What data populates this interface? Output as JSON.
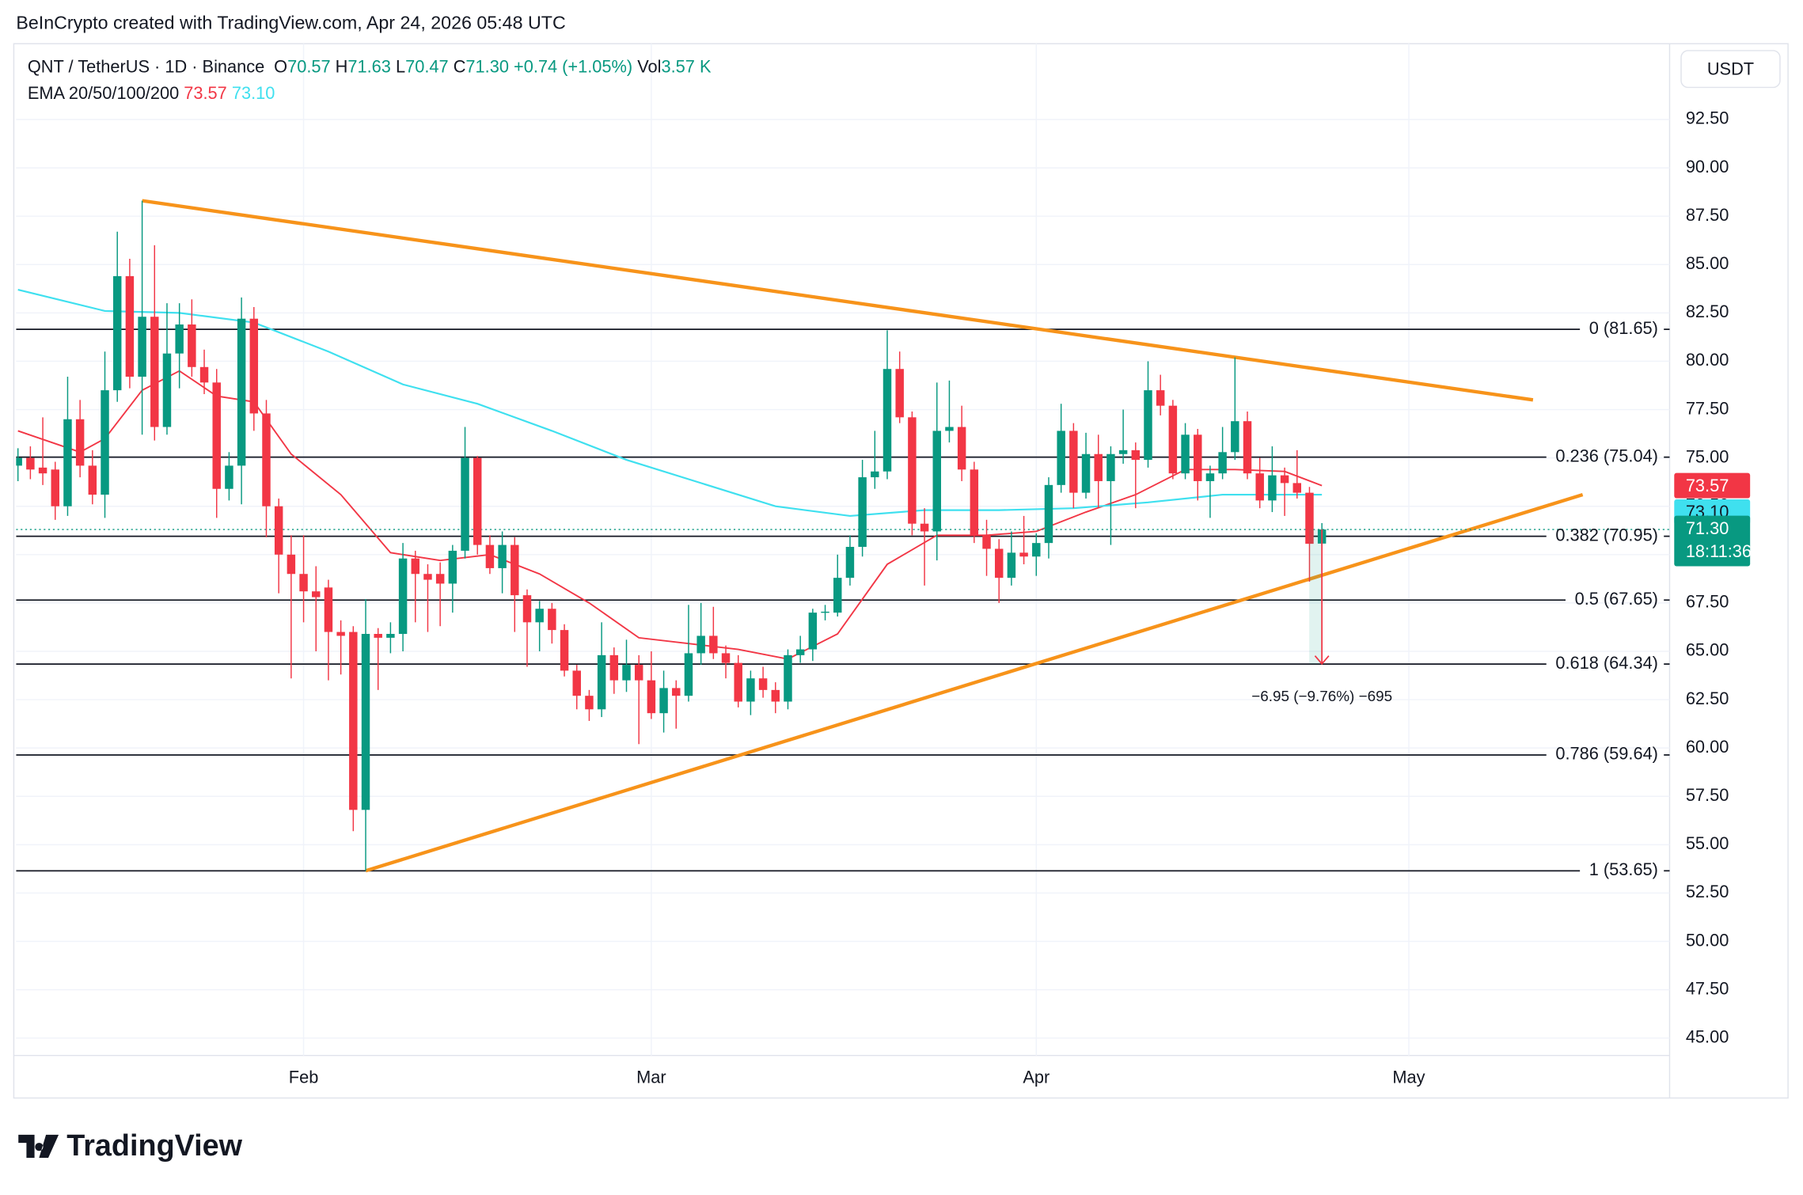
{
  "attribution": "BeInCrypto created with TradingView.com, Apr 24, 2026 05:48 UTC",
  "brand": "TradingView",
  "currency_button": "USDT",
  "chart_data": {
    "type": "candlestick",
    "symbol": "QNT / TetherUS · 1D · Binance",
    "legend": [
      {
        "key": "O",
        "value": "70.57"
      },
      {
        "key": "H",
        "value": "71.63"
      },
      {
        "key": "L",
        "value": "70.47"
      },
      {
        "key": "C",
        "value": "71.30"
      }
    ],
    "change": "+0.74 (+1.05%)",
    "volume": {
      "key": "Vol",
      "value": "3.57 K"
    },
    "x": [
      9,
      10,
      11,
      12,
      13,
      14,
      15,
      16,
      17,
      18,
      19,
      20,
      21,
      22,
      23,
      24,
      25,
      26,
      27,
      28,
      29,
      30,
      31,
      32,
      33,
      34,
      35,
      36,
      37,
      38,
      39,
      40,
      41,
      42,
      43,
      44,
      45,
      46,
      47,
      48,
      49,
      50,
      51,
      52,
      53,
      54,
      55,
      56,
      57,
      58,
      59,
      60,
      61,
      62,
      63,
      64,
      65,
      66,
      67,
      68,
      69,
      70,
      71,
      72,
      73,
      74,
      75,
      76,
      77,
      78,
      79,
      80,
      81,
      82,
      83,
      84,
      85,
      86,
      87,
      88,
      89,
      90,
      91,
      92,
      93,
      94,
      95,
      96,
      97,
      98,
      99,
      100,
      101,
      102,
      103,
      104,
      105,
      106,
      107,
      108,
      109,
      110,
      111,
      112,
      113,
      114
    ],
    "open": [
      74.6,
      75.0,
      74.5,
      74.4,
      72.5,
      77.0,
      74.6,
      73.1,
      78.5,
      84.4,
      79.2,
      82.3,
      76.6,
      80.4,
      81.9,
      79.7,
      78.9,
      73.4,
      74.6,
      82.2,
      77.3,
      72.5,
      70.0,
      69.0,
      68.1,
      68.3,
      66.0,
      66.0,
      56.8,
      65.9,
      65.7,
      65.9,
      69.8,
      69.0,
      69.0,
      68.5,
      70.2,
      75.0,
      70.5,
      69.3,
      70.5,
      67.9,
      66.5,
      67.2,
      66.1,
      64.0,
      62.7,
      62.0,
      64.8,
      63.5,
      64.3,
      63.5,
      61.8,
      63.1,
      62.7,
      64.9,
      65.8,
      64.9,
      64.4,
      62.4,
      63.6,
      63.0,
      62.4,
      64.8,
      65.1,
      67.0,
      67.0,
      68.8,
      70.4,
      74.0,
      74.3,
      79.6,
      77.1,
      71.6,
      71.2,
      76.4,
      76.6,
      74.4,
      71.0,
      70.3,
      68.8,
      70.1,
      69.9,
      70.6,
      73.6,
      76.4,
      73.2,
      75.2,
      73.8,
      75.2,
      75.4,
      74.9,
      78.5,
      77.7,
      74.2,
      76.2,
      73.8,
      74.2,
      75.3,
      76.9,
      74.2,
      72.8,
      74.1,
      73.7,
      73.2,
      70.57
    ],
    "high": [
      75.5,
      75.6,
      77.1,
      74.8,
      79.2,
      78.0,
      75.4,
      80.5,
      86.7,
      85.3,
      88.3,
      86.0,
      83.0,
      83.0,
      83.2,
      80.6,
      79.6,
      75.3,
      83.3,
      82.8,
      78.0,
      72.9,
      71.0,
      71.0,
      69.4,
      68.7,
      66.6,
      66.3,
      67.7,
      66.2,
      66.5,
      70.6,
      70.2,
      69.5,
      69.6,
      70.5,
      76.6,
      75.1,
      71.0,
      71.2,
      70.9,
      68.2,
      67.6,
      67.5,
      66.4,
      64.3,
      63.0,
      66.5,
      65.2,
      65.6,
      64.8,
      65.0,
      64.0,
      63.5,
      67.4,
      67.5,
      67.3,
      65.3,
      64.8,
      64.0,
      64.2,
      63.4,
      65.1,
      65.8,
      67.2,
      67.4,
      70.0,
      71.0,
      74.9,
      76.4,
      81.6,
      80.5,
      77.4,
      72.4,
      78.9,
      79.0,
      77.7,
      74.8,
      71.8,
      70.8,
      71.2,
      72.0,
      71.1,
      74.0,
      77.8,
      76.8,
      76.3,
      76.2,
      75.6,
      77.5,
      75.8,
      80.0,
      79.3,
      78.0,
      76.8,
      76.5,
      74.6,
      76.6,
      80.2,
      77.4,
      75.0,
      75.6,
      74.5,
      75.4,
      73.5,
      71.63
    ],
    "low": [
      73.8,
      73.9,
      73.6,
      71.8,
      72.0,
      74.0,
      72.6,
      71.9,
      77.9,
      78.6,
      76.2,
      75.9,
      76.2,
      78.6,
      79.2,
      78.3,
      71.9,
      72.8,
      72.6,
      76.4,
      70.9,
      68.0,
      63.6,
      66.5,
      65.0,
      63.5,
      63.8,
      55.7,
      53.65,
      63.0,
      64.9,
      65.0,
      66.5,
      66.0,
      66.3,
      67.0,
      69.8,
      70.0,
      69.0,
      68.0,
      66.0,
      64.2,
      65.0,
      65.4,
      63.7,
      62.0,
      61.4,
      61.6,
      62.8,
      62.9,
      60.2,
      61.5,
      60.8,
      61.0,
      62.4,
      64.3,
      64.6,
      63.6,
      62.1,
      61.7,
      62.6,
      61.8,
      62.0,
      64.4,
      64.5,
      66.6,
      66.8,
      68.4,
      69.9,
      73.4,
      73.9,
      76.8,
      71.0,
      68.4,
      69.7,
      75.8,
      73.8,
      70.6,
      68.9,
      67.5,
      68.4,
      69.5,
      68.9,
      69.8,
      73.2,
      72.4,
      72.9,
      72.4,
      70.5,
      74.7,
      72.4,
      74.5,
      77.2,
      73.9,
      73.9,
      72.8,
      71.9,
      73.9,
      74.9,
      73.9,
      72.4,
      72.2,
      72.0,
      72.9,
      68.6,
      70.47
    ],
    "close": [
      75.0,
      74.4,
      74.2,
      72.5,
      77.0,
      74.6,
      73.1,
      78.5,
      84.4,
      79.2,
      82.3,
      76.6,
      80.4,
      81.9,
      79.7,
      78.9,
      73.4,
      74.6,
      82.2,
      77.3,
      72.5,
      70.0,
      69.0,
      68.1,
      67.8,
      66.0,
      65.8,
      56.8,
      65.9,
      65.7,
      65.9,
      69.8,
      69.0,
      68.7,
      68.5,
      70.2,
      75.0,
      70.5,
      69.3,
      70.5,
      67.9,
      66.5,
      67.2,
      66.1,
      64.0,
      62.7,
      62.0,
      64.8,
      63.5,
      64.3,
      63.5,
      61.8,
      63.1,
      62.7,
      64.9,
      65.8,
      64.9,
      64.4,
      62.4,
      63.6,
      63.0,
      62.4,
      64.8,
      65.1,
      67.0,
      67.05,
      68.8,
      70.4,
      74.0,
      74.3,
      79.6,
      77.1,
      71.6,
      71.2,
      76.4,
      76.6,
      74.4,
      71.0,
      70.3,
      68.8,
      70.1,
      69.9,
      70.6,
      73.6,
      76.4,
      73.2,
      75.2,
      73.8,
      75.2,
      75.4,
      74.9,
      78.5,
      77.7,
      74.2,
      76.2,
      73.8,
      74.2,
      75.3,
      76.9,
      74.2,
      72.8,
      74.1,
      73.7,
      73.2,
      70.56,
      71.3
    ],
    "up_color": "#089981",
    "down_color": "#f23645",
    "xlim": [
      8.85,
      142
    ],
    "xticks": [
      {
        "value": 32,
        "label": "Feb"
      },
      {
        "value": 60,
        "label": "Mar"
      },
      {
        "value": 91,
        "label": "Apr"
      },
      {
        "value": 121,
        "label": "May"
      }
    ],
    "ylim": [
      44.1,
      96.42
    ],
    "yticks": [
      {
        "value": 45,
        "label": "45.00"
      },
      {
        "value": 47.5,
        "label": "47.50"
      },
      {
        "value": 50,
        "label": "50.00"
      },
      {
        "value": 52.5,
        "label": "52.50"
      },
      {
        "value": 55,
        "label": "55.00"
      },
      {
        "value": 57.5,
        "label": "57.50"
      },
      {
        "value": 60,
        "label": "60.00"
      },
      {
        "value": 62.5,
        "label": "62.50"
      },
      {
        "value": 65,
        "label": "65.00"
      },
      {
        "value": 67.5,
        "label": "67.50"
      },
      {
        "value": 70,
        "label": "70.00"
      },
      {
        "value": 72.5,
        "label": "72.50"
      },
      {
        "value": 75,
        "label": "75.00"
      },
      {
        "value": 77.5,
        "label": "77.50"
      },
      {
        "value": 80,
        "label": "80.00"
      },
      {
        "value": 82.5,
        "label": "82.50"
      },
      {
        "value": 85,
        "label": "85.00"
      },
      {
        "value": 87.5,
        "label": "87.50"
      },
      {
        "value": 90,
        "label": "90.00"
      },
      {
        "value": 92.5,
        "label": "92.50"
      }
    ],
    "grid": true,
    "last_price": {
      "value": 71.3,
      "label": "71.30",
      "countdown": "18:11:36"
    },
    "ema": {
      "label": "EMA 20/50/100/200",
      "series": [
        {
          "color": "#f23645",
          "last_label": "73.57",
          "x": [
            9,
            14,
            16,
            19,
            22,
            25,
            28,
            31,
            35,
            39,
            43,
            47,
            51,
            55,
            59,
            63,
            67,
            71,
            75,
            79,
            83,
            87,
            91,
            95,
            99,
            103,
            107,
            111,
            114
          ],
          "values": [
            76.4,
            75.3,
            76.0,
            78.5,
            79.5,
            78.2,
            77.9,
            75.2,
            73.1,
            70.1,
            69.7,
            70.0,
            69.0,
            67.5,
            65.7,
            65.4,
            65.1,
            64.6,
            65.9,
            69.5,
            71.0,
            71.0,
            71.2,
            72.2,
            73.1,
            74.4,
            74.4,
            74.3,
            73.57
          ]
        },
        {
          "color": "#3fe0ef",
          "last_label": "73.10",
          "x": [
            9,
            16,
            22,
            28,
            34,
            40,
            46,
            52,
            58,
            64,
            70,
            76,
            82,
            88,
            94,
            100,
            106,
            114
          ],
          "values": [
            83.7,
            82.6,
            82.5,
            82.0,
            80.5,
            78.8,
            77.8,
            76.4,
            74.9,
            73.7,
            72.5,
            72.0,
            72.3,
            72.3,
            72.4,
            72.7,
            73.1,
            73.1
          ]
        }
      ]
    },
    "fib_levels": [
      {
        "value": 81.65,
        "label": "0 (81.65)"
      },
      {
        "value": 75.04,
        "label": "0.236 (75.04)"
      },
      {
        "value": 70.95,
        "label": "0.382 (70.95)"
      },
      {
        "value": 67.65,
        "label": "0.5 (67.65)"
      },
      {
        "value": 64.34,
        "label": "0.618 (64.34)"
      },
      {
        "value": 59.64,
        "label": "0.786 (59.64)"
      },
      {
        "value": 53.65,
        "label": "1 (53.65)"
      }
    ],
    "trendlines": {
      "color": "#f7931a",
      "lines": [
        {
          "x": [
            19,
            131
          ],
          "values": [
            88.3,
            78.0
          ]
        },
        {
          "x": [
            37,
            135
          ],
          "values": [
            53.65,
            73.1
          ]
        }
      ]
    },
    "measure": {
      "x": 114,
      "from": 71.3,
      "to": 64.35,
      "label": "−6.95 (−9.76%) −695"
    }
  }
}
